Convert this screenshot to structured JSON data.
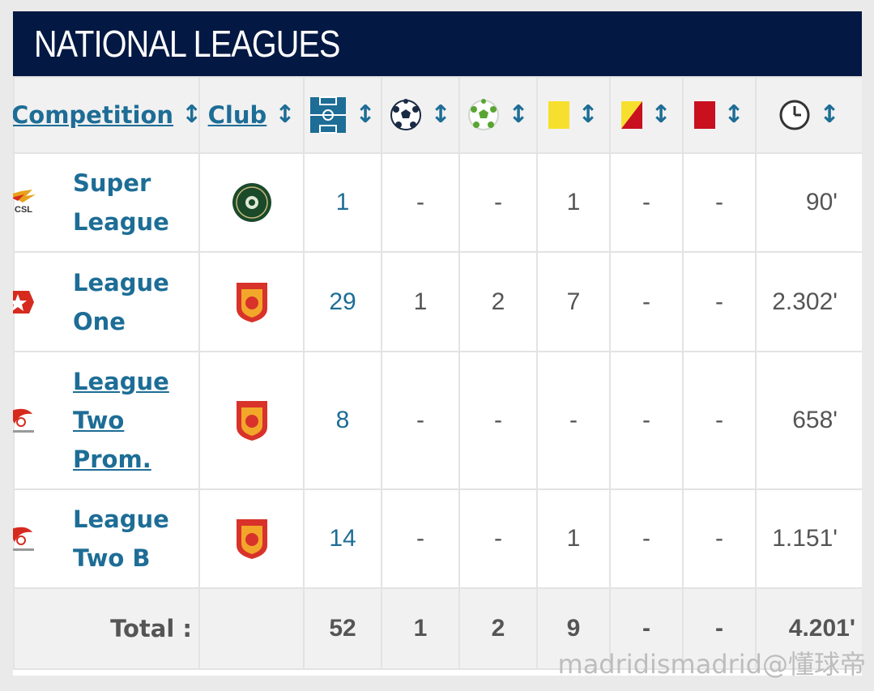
{
  "title": "NATIONAL LEAGUES",
  "header": {
    "competition": "Competition",
    "club": "Club",
    "sort_glyph": "↕",
    "icons": [
      "appearances-pitch-icon",
      "goals-ball-icon",
      "assists-ball-icon",
      "yellow-card-icon",
      "yellow-red-card-icon",
      "red-card-icon",
      "minutes-clock-icon"
    ]
  },
  "rows": [
    {
      "competition": "Super League",
      "underlined": false,
      "comp_logo": "csl-logo",
      "club_logo": "green-club-crest",
      "apps": "1",
      "goals": "-",
      "assists": "-",
      "yellow": "1",
      "yellow_red": "-",
      "red": "-",
      "minutes": "90'"
    },
    {
      "competition": "League One",
      "underlined": false,
      "comp_logo": "league-one-logo",
      "club_logo": "red-club-crest",
      "apps": "29",
      "goals": "1",
      "assists": "2",
      "yellow": "7",
      "yellow_red": "-",
      "red": "-",
      "minutes": "2.302'"
    },
    {
      "competition": "League Two Prom.",
      "underlined": true,
      "comp_logo": "league-two-logo",
      "club_logo": "red-club-crest",
      "apps": "8",
      "goals": "-",
      "assists": "-",
      "yellow": "-",
      "yellow_red": "-",
      "red": "-",
      "minutes": "658'"
    },
    {
      "competition": "League Two B",
      "underlined": false,
      "comp_logo": "league-two-logo",
      "club_logo": "red-club-crest",
      "apps": "14",
      "goals": "-",
      "assists": "-",
      "yellow": "1",
      "yellow_red": "-",
      "red": "-",
      "minutes": "1.151'"
    }
  ],
  "total": {
    "label": "Total :",
    "apps": "52",
    "goals": "1",
    "assists": "2",
    "yellow": "9",
    "yellow_red": "-",
    "red": "-",
    "minutes": "4.201'"
  },
  "watermark": "madridismadrid@懂球帝",
  "colors": {
    "title_bg": "#031842",
    "link": "#1d6d96",
    "yellow_card": "#f7e02d",
    "red_card": "#c8101f"
  }
}
